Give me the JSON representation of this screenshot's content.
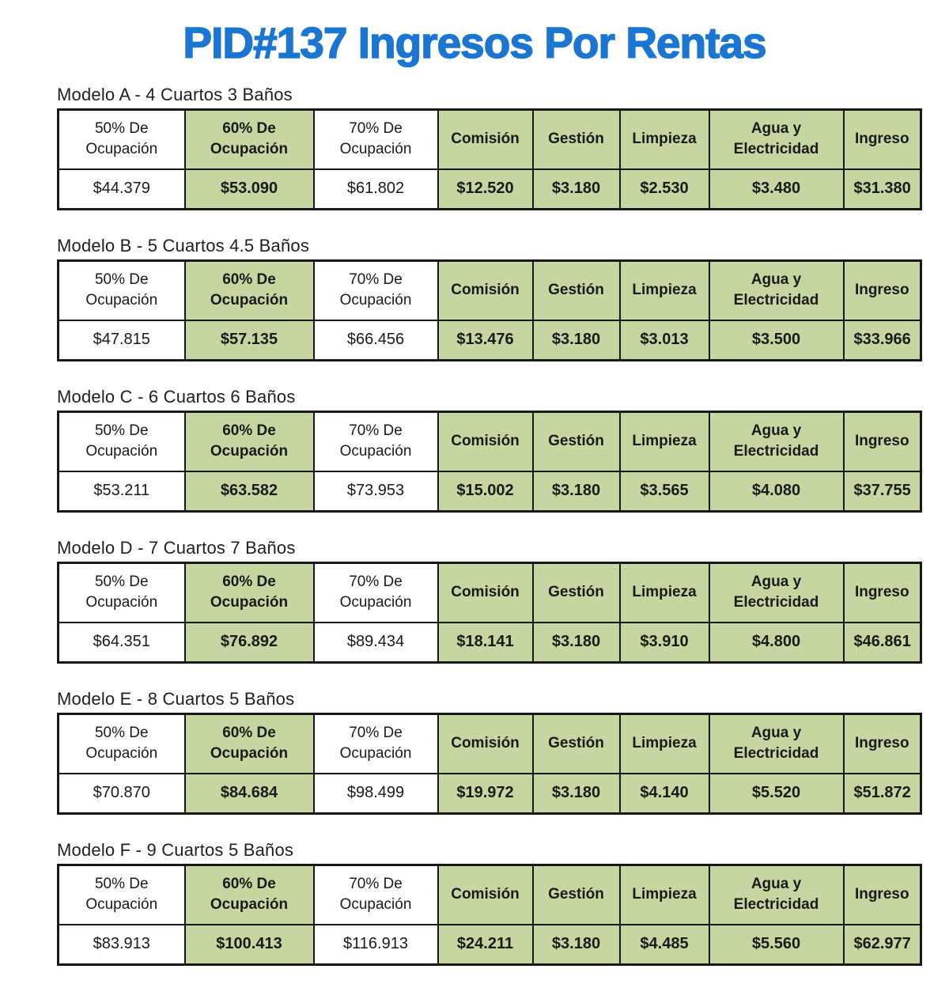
{
  "page": {
    "title": "PID#137 Ingresos Por Rentas"
  },
  "colors": {
    "title_blue": "#1b76d2",
    "highlight_green": "#c5d6a0",
    "border_black": "#181818"
  },
  "columns": [
    "50% De Ocupación",
    "60% De Ocupación",
    "70% De Ocupación",
    "Comisión",
    "Gestión",
    "Limpieza",
    "Agua y Electricidad",
    "Ingreso"
  ],
  "highlight_columns": [
    1,
    3,
    4,
    5,
    6,
    7
  ],
  "tables": [
    {
      "label": "Modelo A - 4 Cuartos 3 Baños",
      "values": [
        "$44.379",
        "$53.090",
        "$61.802",
        "$12.520",
        "$3.180",
        "$2.530",
        "$3.480",
        "$31.380"
      ]
    },
    {
      "label": "Modelo B - 5 Cuartos 4.5 Baños",
      "values": [
        "$47.815",
        "$57.135",
        "$66.456",
        "$13.476",
        "$3.180",
        "$3.013",
        "$3.500",
        "$33.966"
      ]
    },
    {
      "label": "Modelo C - 6 Cuartos 6 Baños",
      "values": [
        "$53.211",
        "$63.582",
        "$73.953",
        "$15.002",
        "$3.180",
        "$3.565",
        "$4.080",
        "$37.755"
      ]
    },
    {
      "label": "Modelo D - 7 Cuartos 7 Baños",
      "values": [
        "$64.351",
        "$76.892",
        "$89.434",
        "$18.141",
        "$3.180",
        "$3.910",
        "$4.800",
        "$46.861"
      ]
    },
    {
      "label": "Modelo E - 8 Cuartos 5 Baños",
      "values": [
        "$70.870",
        "$84.684",
        "$98.499",
        "$19.972",
        "$3.180",
        "$4.140",
        "$5.520",
        "$51.872"
      ]
    },
    {
      "label": "Modelo F - 9 Cuartos 5 Baños",
      "values": [
        "$83.913",
        "$100.413",
        "$116.913",
        "$24.211",
        "$3.180",
        "$4.485",
        "$5.560",
        "$62.977"
      ]
    }
  ]
}
